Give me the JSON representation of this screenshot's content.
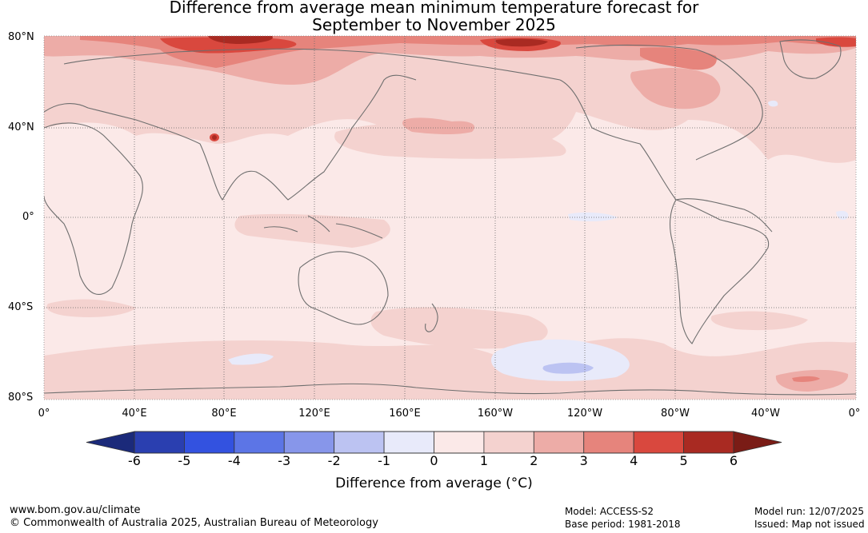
{
  "title": {
    "line1": "Difference from average mean minimum temperature forecast for",
    "line2": "September to November 2025"
  },
  "map": {
    "lat_labels": [
      "80°N",
      "40°N",
      "0°",
      "40°S",
      "80°S"
    ],
    "lon_labels": [
      "0°",
      "40°E",
      "80°E",
      "120°E",
      "160°E",
      "160°W",
      "120°W",
      "80°W",
      "40°W",
      "0°"
    ]
  },
  "colorbar": {
    "label": "Difference from average (°C)",
    "ticks": [
      "-6",
      "-5",
      "-4",
      "-3",
      "-2",
      "-1",
      "0",
      "1",
      "2",
      "3",
      "4",
      "5",
      "6"
    ],
    "colors": {
      "below": "#1b2a7a",
      "bins": [
        "#2a3fb0",
        "#3352e0",
        "#5c75e6",
        "#8796ea",
        "#bcc3f2",
        "#e8eafa",
        "#fbe9e8",
        "#f4d2cf",
        "#edaca7",
        "#e6847c",
        "#d9483e",
        "#a92a22"
      ],
      "above": "#7a1c16"
    }
  },
  "footer": {
    "website": "www.bom.gov.au/climate",
    "copyright": "© Commonwealth of Australia 2025, Australian Bureau of Meteorology",
    "model": "Model: ACCESS-S2",
    "base_period": "Base period: 1981-2018",
    "model_run": "Model run: 12/07/2025",
    "issued": "Issued: Map not issued"
  }
}
